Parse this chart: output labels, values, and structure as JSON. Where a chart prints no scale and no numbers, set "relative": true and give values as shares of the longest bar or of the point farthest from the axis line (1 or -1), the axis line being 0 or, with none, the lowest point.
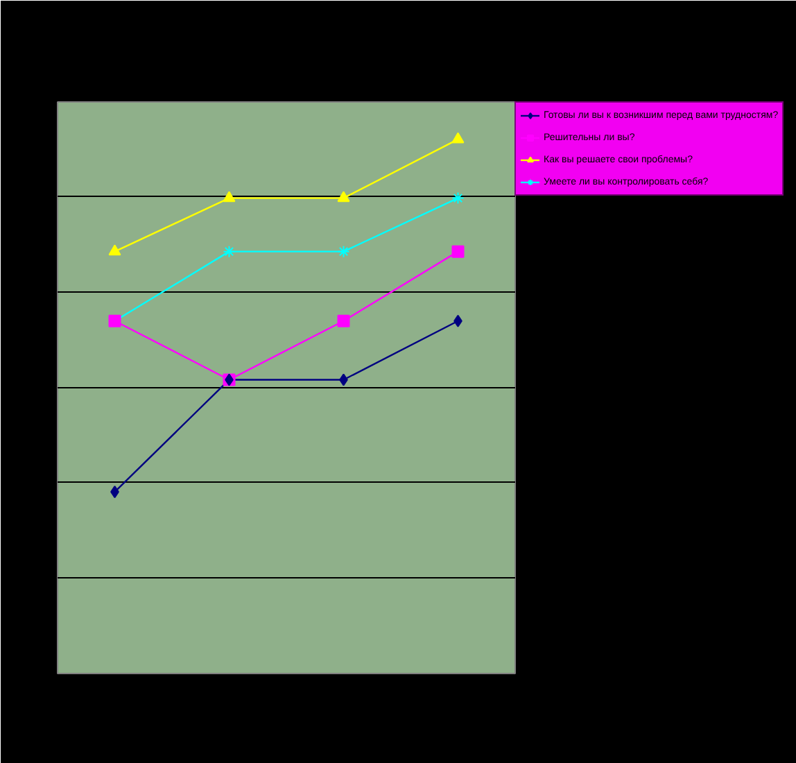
{
  "chart_data": {
    "type": "line",
    "relative": true,
    "categories": [
      null,
      null,
      null,
      null
    ],
    "grid": "y",
    "legend": "right",
    "series": [
      {
        "name": "Готовы ли вы к возникшим перед вами трудностям?",
        "color": "#000080",
        "marker": "diamond",
        "values": [
          0.34,
          0.55,
          0.55,
          0.66
        ]
      },
      {
        "name": "Решительны ли вы?",
        "color": "#ff00ff",
        "marker": "square",
        "values": [
          0.66,
          0.55,
          0.66,
          0.79
        ]
      },
      {
        "name": "Как вы решаете свои проблемы?",
        "color": "#ffff00",
        "marker": "triangle",
        "values": [
          0.79,
          0.89,
          0.89,
          1.0
        ]
      },
      {
        "name": "Умеете ли вы контролировать себя?",
        "color": "#00ffff",
        "marker": "cross",
        "values": [
          0.66,
          0.79,
          0.79,
          0.89
        ]
      }
    ]
  }
}
